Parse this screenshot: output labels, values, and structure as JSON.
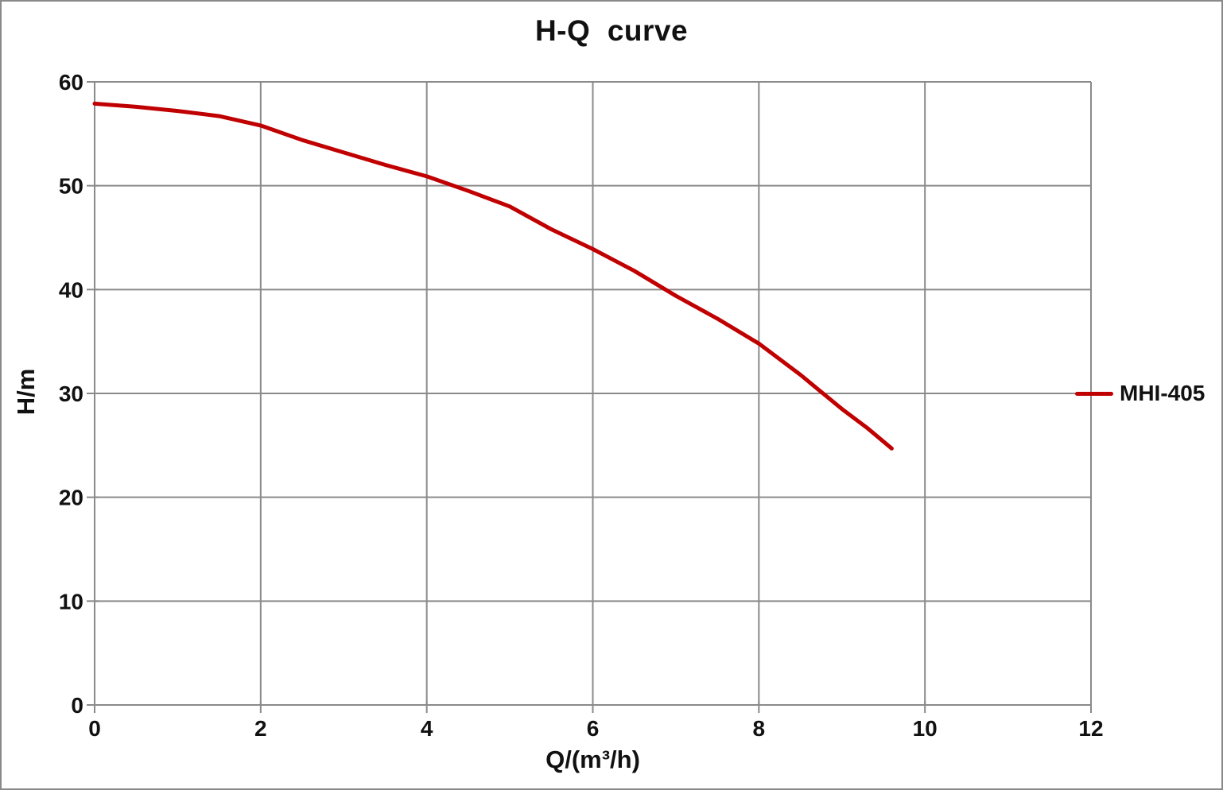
{
  "chart_data": {
    "type": "line",
    "title": "H-Q  curve",
    "xlabel": "Q/(m³/h)",
    "ylabel": "H/m",
    "xlim": [
      0,
      12
    ],
    "ylim": [
      0,
      60
    ],
    "xticks": [
      0,
      2,
      4,
      6,
      8,
      10,
      12
    ],
    "yticks": [
      0,
      10,
      20,
      30,
      40,
      50,
      60
    ],
    "grid": true,
    "tick_style": "cross",
    "legend_position": "right-middle",
    "series": [
      {
        "name": "MHI-405",
        "color": "#C00000",
        "points": [
          [
            0.0,
            57.9
          ],
          [
            0.5,
            57.6
          ],
          [
            1.0,
            57.2
          ],
          [
            1.5,
            56.7
          ],
          [
            2.0,
            55.8
          ],
          [
            2.5,
            54.4
          ],
          [
            3.0,
            53.2
          ],
          [
            3.5,
            52.0
          ],
          [
            4.0,
            50.9
          ],
          [
            4.5,
            49.5
          ],
          [
            5.0,
            48.0
          ],
          [
            5.5,
            45.8
          ],
          [
            6.0,
            43.9
          ],
          [
            6.5,
            41.8
          ],
          [
            7.0,
            39.4
          ],
          [
            7.5,
            37.2
          ],
          [
            8.0,
            34.8
          ],
          [
            8.5,
            31.8
          ],
          [
            9.0,
            28.5
          ],
          [
            9.3,
            26.7
          ],
          [
            9.6,
            24.7
          ]
        ]
      }
    ],
    "colors": {
      "series": "#C00000",
      "grid": "#8A8A8A",
      "axis": "#8A8A8A",
      "text": "#111111",
      "frame_border": "#8A8A8A",
      "background": "#FFFFFF"
    }
  }
}
